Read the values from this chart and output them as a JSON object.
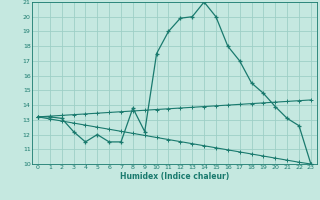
{
  "xlabel": "Humidex (Indice chaleur)",
  "xlim": [
    -0.5,
    23.5
  ],
  "ylim": [
    10,
    21
  ],
  "yticks": [
    10,
    11,
    12,
    13,
    14,
    15,
    16,
    17,
    18,
    19,
    20,
    21
  ],
  "xticks": [
    0,
    1,
    2,
    3,
    4,
    5,
    6,
    7,
    8,
    9,
    10,
    11,
    12,
    13,
    14,
    15,
    16,
    17,
    18,
    19,
    20,
    21,
    22,
    23
  ],
  "bg_color": "#c5e8e0",
  "grid_color": "#9ecfc6",
  "line_color": "#1a7a6e",
  "main_x": [
    0,
    1,
    2,
    3,
    4,
    5,
    6,
    7,
    8,
    9,
    10,
    11,
    12,
    13,
    14,
    15,
    16,
    17,
    18,
    19,
    20,
    21,
    22,
    23
  ],
  "main_y": [
    13.2,
    13.2,
    13.1,
    12.2,
    11.5,
    12.0,
    11.5,
    11.5,
    13.8,
    12.2,
    17.5,
    19.0,
    19.9,
    20.0,
    21.0,
    20.0,
    18.0,
    17.0,
    15.5,
    14.8,
    13.9,
    13.1,
    12.6,
    10.0
  ],
  "upper_x": [
    0,
    1,
    2,
    3,
    4,
    5,
    6,
    7,
    8,
    9,
    10,
    11,
    12,
    13,
    14,
    15,
    16,
    17,
    18,
    19,
    20,
    21,
    22,
    23
  ],
  "upper_y": [
    13.2,
    13.25,
    13.3,
    13.35,
    13.4,
    13.45,
    13.5,
    13.55,
    13.6,
    13.65,
    13.7,
    13.75,
    13.8,
    13.85,
    13.9,
    13.95,
    14.0,
    14.05,
    14.1,
    14.15,
    14.2,
    14.25,
    14.3,
    14.35
  ],
  "lower_x": [
    0,
    1,
    2,
    3,
    4,
    5,
    6,
    7,
    8,
    9,
    10,
    11,
    12,
    13,
    14,
    15,
    16,
    17,
    18,
    19,
    20,
    21,
    22,
    23
  ],
  "lower_y": [
    13.2,
    13.06,
    12.92,
    12.78,
    12.64,
    12.5,
    12.36,
    12.22,
    12.08,
    11.94,
    11.8,
    11.66,
    11.52,
    11.38,
    11.24,
    11.1,
    10.96,
    10.82,
    10.68,
    10.54,
    10.4,
    10.26,
    10.12,
    10.0
  ]
}
